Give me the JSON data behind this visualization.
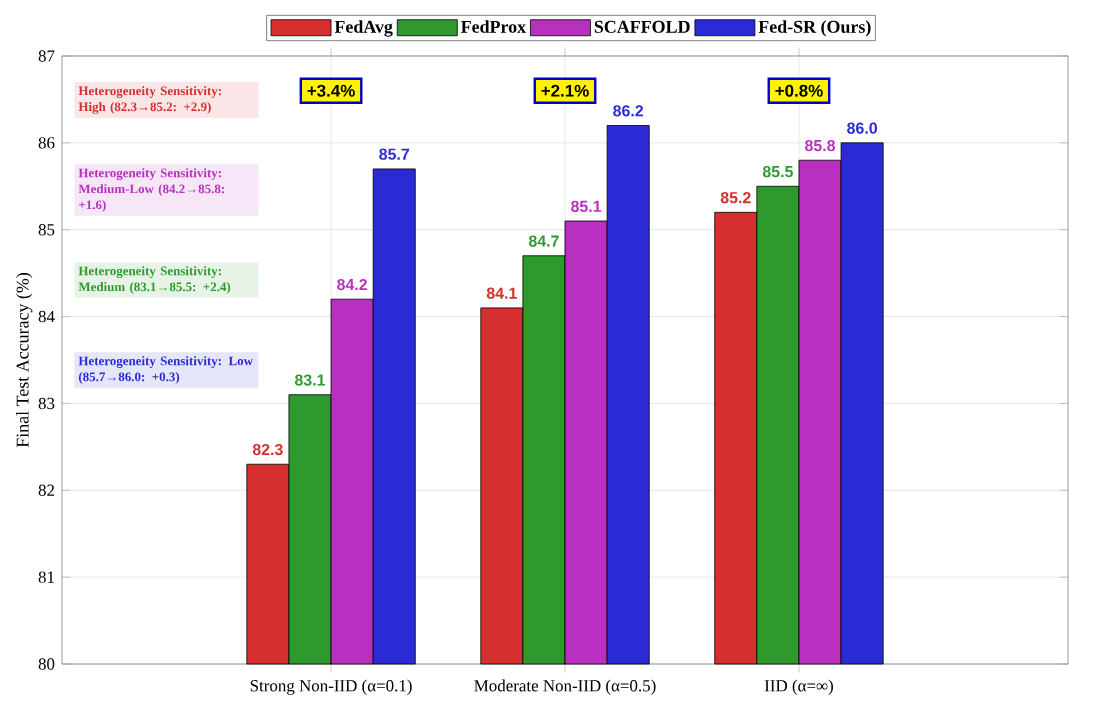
{
  "chart_data": {
    "type": "bar",
    "ylabel": "Final Test Accuracy (%)",
    "categories": [
      "Strong Non-IID (α=0.1)",
      "Moderate Non-IID (α=0.5)",
      "IID (α=∞)"
    ],
    "series": [
      {
        "name": "FedAvg",
        "color": "#d62f2f",
        "values": [
          82.3,
          84.1,
          85.2
        ],
        "value_labels": [
          "82.3",
          "84.1",
          "85.2"
        ]
      },
      {
        "name": "FedProx",
        "color": "#2e9a2e",
        "values": [
          83.1,
          84.7,
          85.5
        ],
        "value_labels": [
          "83.1",
          "84.7",
          "85.5"
        ]
      },
      {
        "name": "SCAFFOLD",
        "color": "#b92fbf",
        "values": [
          84.2,
          85.1,
          85.8
        ],
        "value_labels": [
          "84.2",
          "85.1",
          "85.8"
        ]
      },
      {
        "name": "Fed-SR (Ours)",
        "color": "#2b2bd6",
        "values": [
          85.7,
          86.2,
          86.0
        ],
        "value_labels": [
          "85.7",
          "86.2",
          "86.0"
        ]
      }
    ],
    "ylim": [
      80,
      87
    ],
    "yticks": [
      80,
      81,
      82,
      83,
      84,
      85,
      86,
      87
    ],
    "grid": true,
    "legend": "top",
    "annotations": [
      "Heterogeneity Sensitivity: High (82.3→85.2: +2.9)",
      "Heterogeneity Sensitivity: Medium-Low (84.2→85.8: +1.6)",
      "Heterogeneity Sensitivity: Medium (83.1→85.5: +2.4)",
      "Heterogeneity Sensitivity: Low (85.7→86.0: +0.3)",
      {
        "text": "+3.4%",
        "x": "Strong Non-IID (α=0.1)",
        "y": 86.6
      },
      {
        "text": "+2.1%",
        "x": "Moderate Non-IID (α=0.5)",
        "y": 86.6
      },
      {
        "text": "+0.8%",
        "x": "IID (α=∞)",
        "y": 86.6
      }
    ]
  }
}
